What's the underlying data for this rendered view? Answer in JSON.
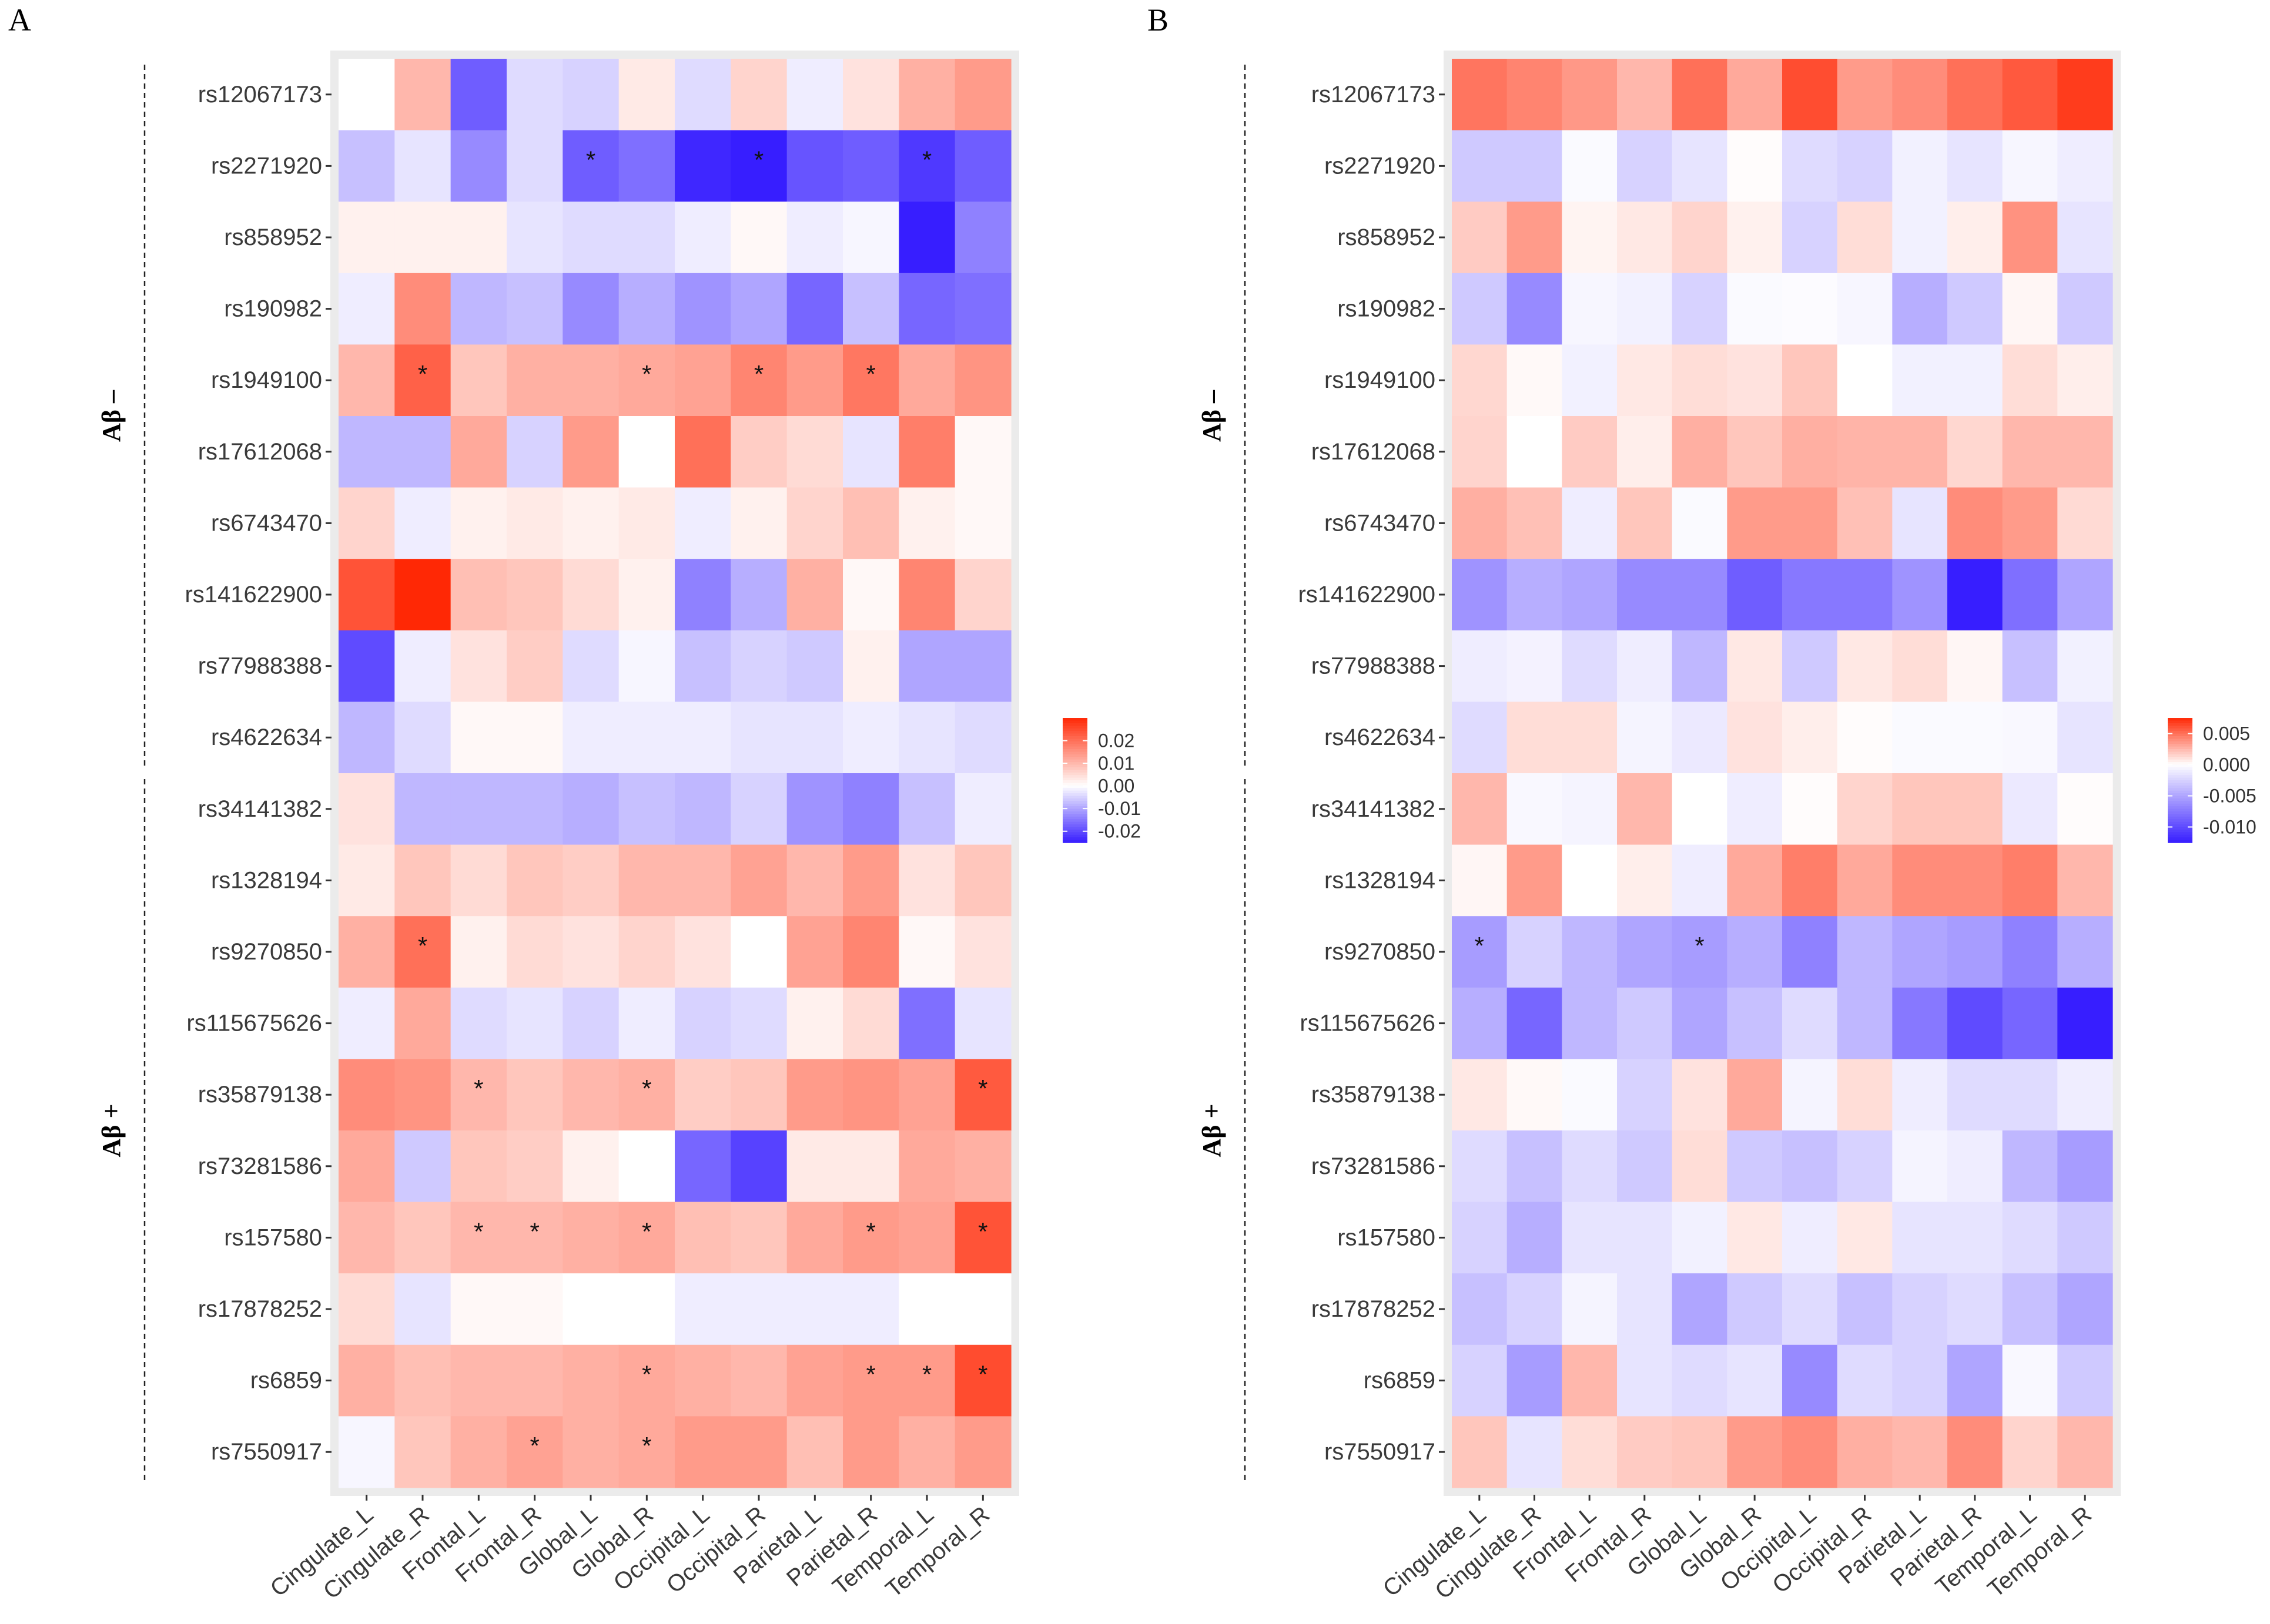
{
  "figure": {
    "title": ""
  },
  "chart_data": [
    {
      "panel": "A",
      "type": "heatmap",
      "title": "",
      "xlabel": "",
      "ylabel": "",
      "columns": [
        "Cingulate_L",
        "Cingulate_R",
        "Frontal_L",
        "Frontal_R",
        "Global_L",
        "Global_R",
        "Occipital_L",
        "Occipital_R",
        "Parietal_L",
        "Parietal_R",
        "Temporal_L",
        "Temporal_R"
      ],
      "rows": [
        "rs12067173",
        "rs2271920",
        "rs858952",
        "rs190982",
        "rs1949100",
        "rs17612068",
        "rs6743470",
        "rs141622900",
        "rs77988388",
        "rs4622634",
        "rs34141382",
        "rs1328194",
        "rs9270850",
        "rs115675626",
        "rs35879138",
        "rs73281586",
        "rs157580",
        "rs17878252",
        "rs6859",
        "rs7550917"
      ],
      "groups": [
        {
          "label": "Aβ –",
          "start": 0,
          "end": 9
        },
        {
          "label": "Aβ +",
          "start": 10,
          "end": 19
        }
      ],
      "color_range": [
        -0.025,
        0.03
      ],
      "legend_ticks": [
        {
          "value": 0.02,
          "label": "0.02"
        },
        {
          "value": 0.01,
          "label": "0.01"
        },
        {
          "value": 0.0,
          "label": "0.00"
        },
        {
          "value": -0.01,
          "label": "-0.01"
        },
        {
          "value": -0.02,
          "label": "-0.02"
        }
      ],
      "values": [
        [
          0.0,
          0.01,
          -0.018,
          -0.004,
          -0.005,
          0.003,
          -0.004,
          0.006,
          -0.002,
          0.004,
          0.011,
          0.014
        ],
        [
          -0.007,
          -0.003,
          -0.013,
          -0.004,
          -0.018,
          -0.016,
          -0.024,
          -0.025,
          -0.019,
          -0.018,
          -0.022,
          -0.018
        ],
        [
          0.002,
          0.002,
          0.002,
          -0.003,
          -0.004,
          -0.004,
          -0.002,
          0.001,
          -0.002,
          -0.001,
          -0.026,
          -0.014
        ],
        [
          -0.002,
          0.016,
          -0.008,
          -0.007,
          -0.013,
          -0.009,
          -0.012,
          -0.01,
          -0.017,
          -0.007,
          -0.017,
          -0.016
        ],
        [
          0.01,
          0.022,
          0.008,
          0.011,
          0.011,
          0.012,
          0.013,
          0.017,
          0.014,
          0.019,
          0.012,
          0.015
        ],
        [
          -0.008,
          -0.008,
          0.012,
          -0.005,
          0.014,
          0.0,
          0.02,
          0.007,
          0.005,
          -0.003,
          0.018,
          0.001
        ],
        [
          0.006,
          -0.002,
          0.002,
          0.003,
          0.002,
          0.003,
          -0.002,
          0.002,
          0.006,
          0.009,
          0.002,
          0.001
        ],
        [
          0.024,
          0.033,
          0.009,
          0.008,
          0.005,
          0.002,
          -0.014,
          -0.009,
          0.011,
          0.001,
          0.017,
          0.006
        ],
        [
          -0.02,
          -0.002,
          0.004,
          0.007,
          -0.004,
          -0.001,
          -0.007,
          -0.005,
          -0.006,
          0.002,
          -0.01,
          -0.01
        ],
        [
          -0.008,
          -0.004,
          0.001,
          0.001,
          -0.002,
          -0.002,
          -0.002,
          -0.003,
          -0.003,
          -0.002,
          -0.003,
          -0.004
        ],
        [
          0.004,
          -0.008,
          -0.008,
          -0.008,
          -0.009,
          -0.007,
          -0.008,
          -0.005,
          -0.012,
          -0.014,
          -0.007,
          -0.002
        ],
        [
          0.003,
          0.008,
          0.005,
          0.008,
          0.007,
          0.01,
          0.01,
          0.013,
          0.01,
          0.014,
          0.004,
          0.008
        ],
        [
          0.011,
          0.02,
          0.002,
          0.005,
          0.004,
          0.006,
          0.004,
          0.0,
          0.013,
          0.017,
          0.001,
          0.004
        ],
        [
          -0.002,
          0.012,
          -0.004,
          -0.003,
          -0.005,
          -0.002,
          -0.005,
          -0.004,
          0.002,
          0.005,
          -0.016,
          -0.003
        ],
        [
          0.016,
          0.015,
          0.01,
          0.008,
          0.01,
          0.011,
          0.007,
          0.008,
          0.014,
          0.015,
          0.013,
          0.023
        ],
        [
          0.012,
          -0.006,
          0.008,
          0.007,
          0.002,
          0.0,
          -0.017,
          -0.021,
          0.003,
          0.003,
          0.012,
          0.011
        ],
        [
          0.01,
          0.008,
          0.01,
          0.01,
          0.011,
          0.012,
          0.009,
          0.008,
          0.012,
          0.014,
          0.013,
          0.024
        ],
        [
          0.005,
          -0.003,
          0.001,
          0.001,
          0.0,
          0.0,
          -0.002,
          -0.002,
          -0.002,
          -0.002,
          0.0,
          0.0
        ],
        [
          0.011,
          0.009,
          0.01,
          0.01,
          0.011,
          0.012,
          0.011,
          0.01,
          0.013,
          0.014,
          0.014,
          0.025
        ],
        [
          -0.001,
          0.008,
          0.011,
          0.013,
          0.011,
          0.012,
          0.014,
          0.014,
          0.009,
          0.014,
          0.011,
          0.014
        ]
      ],
      "significance": [
        [
          1,
          4
        ],
        [
          1,
          7
        ],
        [
          1,
          10
        ],
        [
          4,
          1
        ],
        [
          4,
          5
        ],
        [
          4,
          7
        ],
        [
          4,
          9
        ],
        [
          12,
          1
        ],
        [
          14,
          2
        ],
        [
          14,
          5
        ],
        [
          14,
          11
        ],
        [
          16,
          2
        ],
        [
          16,
          3
        ],
        [
          16,
          5
        ],
        [
          16,
          9
        ],
        [
          16,
          11
        ],
        [
          18,
          5
        ],
        [
          18,
          9
        ],
        [
          18,
          10
        ],
        [
          18,
          11
        ],
        [
          19,
          3
        ],
        [
          19,
          5
        ]
      ],
      "significance_marker": "*"
    },
    {
      "panel": "B",
      "type": "heatmap",
      "title": "",
      "xlabel": "",
      "ylabel": "",
      "columns": [
        "Cingulate_L",
        "Cingulate_R",
        "Frontal_L",
        "Frontal_R",
        "Global_L",
        "Global_R",
        "Occipital_L",
        "Occipital_R",
        "Parietal_L",
        "Parietal_R",
        "Temporal_L",
        "Temporal_R"
      ],
      "rows": [
        "rs12067173",
        "rs2271920",
        "rs858952",
        "rs190982",
        "rs1949100",
        "rs17612068",
        "rs6743470",
        "rs141622900",
        "rs77988388",
        "rs4622634",
        "rs34141382",
        "rs1328194",
        "rs9270850",
        "rs115675626",
        "rs35879138",
        "rs73281586",
        "rs157580",
        "rs17878252",
        "rs6859",
        "rs7550917"
      ],
      "groups": [
        {
          "label": "Aβ –",
          "start": 0,
          "end": 9
        },
        {
          "label": "Aβ +",
          "start": 10,
          "end": 19
        }
      ],
      "color_range": [
        -0.0125,
        0.0075
      ],
      "legend_ticks": [
        {
          "value": 0.005,
          "label": "0.005"
        },
        {
          "value": 0.0,
          "label": "0.000"
        },
        {
          "value": -0.005,
          "label": "-0.005"
        },
        {
          "value": -0.01,
          "label": "-0.010"
        }
      ],
      "values": [
        [
          0.0048,
          0.0043,
          0.0036,
          0.0025,
          0.005,
          0.003,
          0.0062,
          0.0035,
          0.004,
          0.005,
          0.0058,
          0.0068
        ],
        [
          -0.003,
          -0.003,
          -0.0003,
          -0.0025,
          -0.0015,
          0.0001,
          -0.002,
          -0.0025,
          -0.0008,
          -0.0015,
          -0.0005,
          -0.001
        ],
        [
          0.0018,
          0.0035,
          0.0004,
          0.0008,
          0.0015,
          0.0005,
          -0.0025,
          0.0012,
          -0.0008,
          0.0006,
          0.0038,
          -0.0015
        ],
        [
          -0.003,
          -0.0065,
          -0.0005,
          -0.0008,
          -0.0025,
          -0.0003,
          -0.0002,
          -0.0005,
          -0.0045,
          -0.003,
          0.0003,
          -0.003
        ],
        [
          0.0014,
          0.0002,
          -0.0008,
          0.0008,
          0.0012,
          0.001,
          0.002,
          0.0,
          -0.0008,
          -0.0008,
          0.0012,
          0.0006
        ],
        [
          0.0015,
          0.0,
          0.0018,
          0.0006,
          0.0028,
          0.002,
          0.0028,
          0.0026,
          0.0026,
          0.0014,
          0.0025,
          0.0025
        ],
        [
          0.0028,
          0.0022,
          -0.001,
          0.002,
          -0.0003,
          0.0035,
          0.0035,
          0.0022,
          -0.0015,
          0.004,
          0.0035,
          0.0013
        ],
        [
          -0.006,
          -0.0045,
          -0.005,
          -0.0065,
          -0.0065,
          -0.009,
          -0.0075,
          -0.0075,
          -0.006,
          -0.0125,
          -0.008,
          -0.005
        ],
        [
          -0.001,
          -0.0007,
          -0.002,
          -0.001,
          -0.004,
          0.0008,
          -0.003,
          0.0008,
          0.0012,
          0.0003,
          -0.0035,
          -0.0008
        ],
        [
          -0.002,
          0.0012,
          0.0012,
          -0.0006,
          -0.0012,
          0.001,
          0.0006,
          0.0001,
          -0.0003,
          -0.0003,
          -0.0004,
          -0.0015
        ],
        [
          0.0025,
          -0.0004,
          -0.0006,
          0.0025,
          0.0,
          -0.001,
          0.0001,
          0.0015,
          0.002,
          0.002,
          -0.0012,
          0.0001
        ],
        [
          0.0003,
          0.0035,
          0.0,
          0.0006,
          -0.001,
          0.003,
          0.0045,
          0.003,
          0.004,
          0.004,
          0.0045,
          0.0025
        ],
        [
          -0.0055,
          -0.0025,
          -0.004,
          -0.005,
          -0.0055,
          -0.0045,
          -0.007,
          -0.004,
          -0.005,
          -0.0055,
          -0.007,
          -0.0045
        ],
        [
          -0.0045,
          -0.0085,
          -0.004,
          -0.003,
          -0.005,
          -0.0035,
          -0.002,
          -0.004,
          -0.0075,
          -0.01,
          -0.0085,
          -0.0125
        ],
        [
          0.0008,
          0.0002,
          -0.0003,
          -0.0025,
          0.001,
          0.003,
          -0.0006,
          0.0012,
          -0.001,
          -0.002,
          -0.002,
          -0.001
        ],
        [
          -0.002,
          -0.0035,
          -0.002,
          -0.003,
          0.0012,
          -0.003,
          -0.0035,
          -0.0025,
          -0.0006,
          -0.001,
          -0.004,
          -0.0055
        ],
        [
          -0.0025,
          -0.0045,
          -0.0015,
          -0.0015,
          -0.0008,
          0.0008,
          -0.001,
          0.0008,
          -0.0015,
          -0.0015,
          -0.002,
          -0.003
        ],
        [
          -0.0035,
          -0.0025,
          -0.0006,
          -0.0015,
          -0.005,
          -0.003,
          -0.002,
          -0.0035,
          -0.0025,
          -0.002,
          -0.0035,
          -0.005
        ],
        [
          -0.0025,
          -0.0055,
          0.0025,
          -0.0015,
          -0.002,
          -0.0015,
          -0.0065,
          -0.002,
          -0.0025,
          -0.005,
          -0.0004,
          -0.003
        ],
        [
          0.002,
          -0.0015,
          0.0012,
          0.0018,
          0.002,
          0.0035,
          0.004,
          0.0028,
          0.0025,
          0.004,
          0.0015,
          0.0025
        ]
      ],
      "significance": [
        [
          12,
          0
        ],
        [
          12,
          4
        ]
      ],
      "significance_marker": "*"
    }
  ]
}
